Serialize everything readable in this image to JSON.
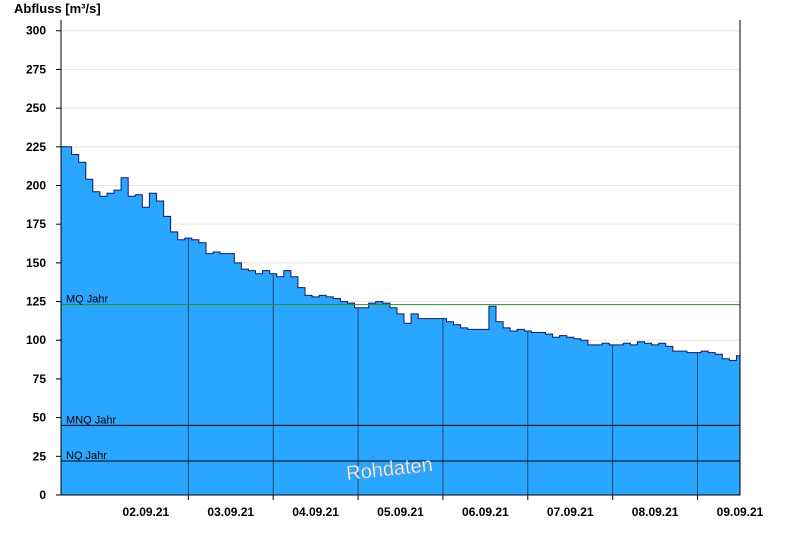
{
  "chart_data": {
    "type": "area",
    "ylabel": "Abfluss [m³/s]",
    "ylim": [
      0,
      305
    ],
    "yticks": [
      0,
      25,
      50,
      75,
      100,
      125,
      150,
      175,
      200,
      225,
      250,
      275,
      300
    ],
    "xlim": [
      "2021-09-01T12:00",
      "2021-09-09T12:00"
    ],
    "xtick_labels": [
      "02.09.21",
      "03.09.21",
      "04.09.21",
      "05.09.21",
      "06.09.21",
      "07.09.21",
      "08.09.21",
      "09.09.21"
    ],
    "grid": true,
    "colors": {
      "area_fill": "#2aa6ff",
      "area_line": "#0a1a6e",
      "mq_line": "#2e8b2e",
      "ref_line": "#000000",
      "grid": "#e6e6e6"
    },
    "reference_lines": [
      {
        "label": "MQ Jahr",
        "value": 123
      },
      {
        "label": "MNQ Jahr",
        "value": 45
      },
      {
        "label": "NQ Jahr",
        "value": 22
      }
    ],
    "watermark": "Rohdaten",
    "series": [
      {
        "x": [
          "2021-09-01T12:00",
          "2021-09-01T13:00",
          "2021-09-01T15:00",
          "2021-09-01T17:00",
          "2021-09-01T19:00",
          "2021-09-01T21:00",
          "2021-09-01T23:00",
          "2021-09-02T01:00",
          "2021-09-02T03:00",
          "2021-09-02T05:00",
          "2021-09-02T07:00",
          "2021-09-02T09:00",
          "2021-09-02T11:00",
          "2021-09-02T13:00",
          "2021-09-02T15:00",
          "2021-09-02T17:00",
          "2021-09-02T19:00",
          "2021-09-02T21:00",
          "2021-09-02T23:00",
          "2021-09-03T01:00",
          "2021-09-03T03:00",
          "2021-09-03T05:00",
          "2021-09-03T07:00",
          "2021-09-03T09:00",
          "2021-09-03T11:00",
          "2021-09-03T13:00",
          "2021-09-03T15:00",
          "2021-09-03T17:00",
          "2021-09-03T19:00",
          "2021-09-03T21:00",
          "2021-09-03T23:00",
          "2021-09-04T01:00",
          "2021-09-04T03:00",
          "2021-09-04T05:00",
          "2021-09-04T07:00",
          "2021-09-04T09:00",
          "2021-09-04T11:00",
          "2021-09-04T13:00",
          "2021-09-04T15:00",
          "2021-09-04T17:00",
          "2021-09-04T19:00",
          "2021-09-04T21:00",
          "2021-09-04T23:00",
          "2021-09-05T01:00",
          "2021-09-05T03:00",
          "2021-09-05T05:00",
          "2021-09-05T07:00",
          "2021-09-05T09:00",
          "2021-09-05T11:00",
          "2021-09-05T13:00",
          "2021-09-05T15:00",
          "2021-09-05T17:00",
          "2021-09-05T19:00",
          "2021-09-05T21:00",
          "2021-09-05T23:00",
          "2021-09-06T01:00",
          "2021-09-06T03:00",
          "2021-09-06T05:00",
          "2021-09-06T07:00",
          "2021-09-06T09:00",
          "2021-09-06T11:00",
          "2021-09-06T13:00",
          "2021-09-06T15:00",
          "2021-09-06T17:00",
          "2021-09-06T19:00",
          "2021-09-06T21:00",
          "2021-09-06T23:00",
          "2021-09-07T01:00",
          "2021-09-07T03:00",
          "2021-09-07T05:00",
          "2021-09-07T07:00",
          "2021-09-07T09:00",
          "2021-09-07T11:00",
          "2021-09-07T13:00",
          "2021-09-07T15:00",
          "2021-09-07T17:00",
          "2021-09-07T19:00",
          "2021-09-07T21:00",
          "2021-09-07T23:00",
          "2021-09-08T01:00",
          "2021-09-08T03:00",
          "2021-09-08T05:00",
          "2021-09-08T07:00",
          "2021-09-08T09:00",
          "2021-09-08T11:00",
          "2021-09-08T13:00",
          "2021-09-08T15:00",
          "2021-09-08T17:00",
          "2021-09-08T19:00",
          "2021-09-08T21:00",
          "2021-09-08T23:00",
          "2021-09-09T01:00",
          "2021-09-09T03:00",
          "2021-09-09T05:00",
          "2021-09-09T07:00",
          "2021-09-09T09:00",
          "2021-09-09T11:00",
          "2021-09-09T12:00"
        ],
        "y": [
          225,
          225,
          220,
          215,
          204,
          196,
          193,
          195,
          197,
          205,
          193,
          194,
          186,
          195,
          190,
          180,
          170,
          165,
          166,
          165,
          163,
          156,
          157,
          156,
          156,
          150,
          146,
          145,
          143,
          145,
          143,
          141,
          145,
          141,
          134,
          129,
          128,
          129,
          128,
          127,
          125,
          124,
          121,
          121,
          124,
          125,
          124,
          121,
          117,
          111,
          117,
          114,
          114,
          114,
          114,
          112,
          110,
          108,
          107,
          107,
          107,
          122,
          112,
          108,
          106,
          107,
          106,
          105,
          105,
          104,
          102,
          103,
          102,
          101,
          100,
          97,
          97,
          98,
          97,
          97,
          98,
          97,
          99,
          98,
          97,
          98,
          96,
          93,
          93,
          92,
          92,
          93,
          92,
          91,
          88,
          87,
          90,
          90
        ]
      }
    ]
  }
}
